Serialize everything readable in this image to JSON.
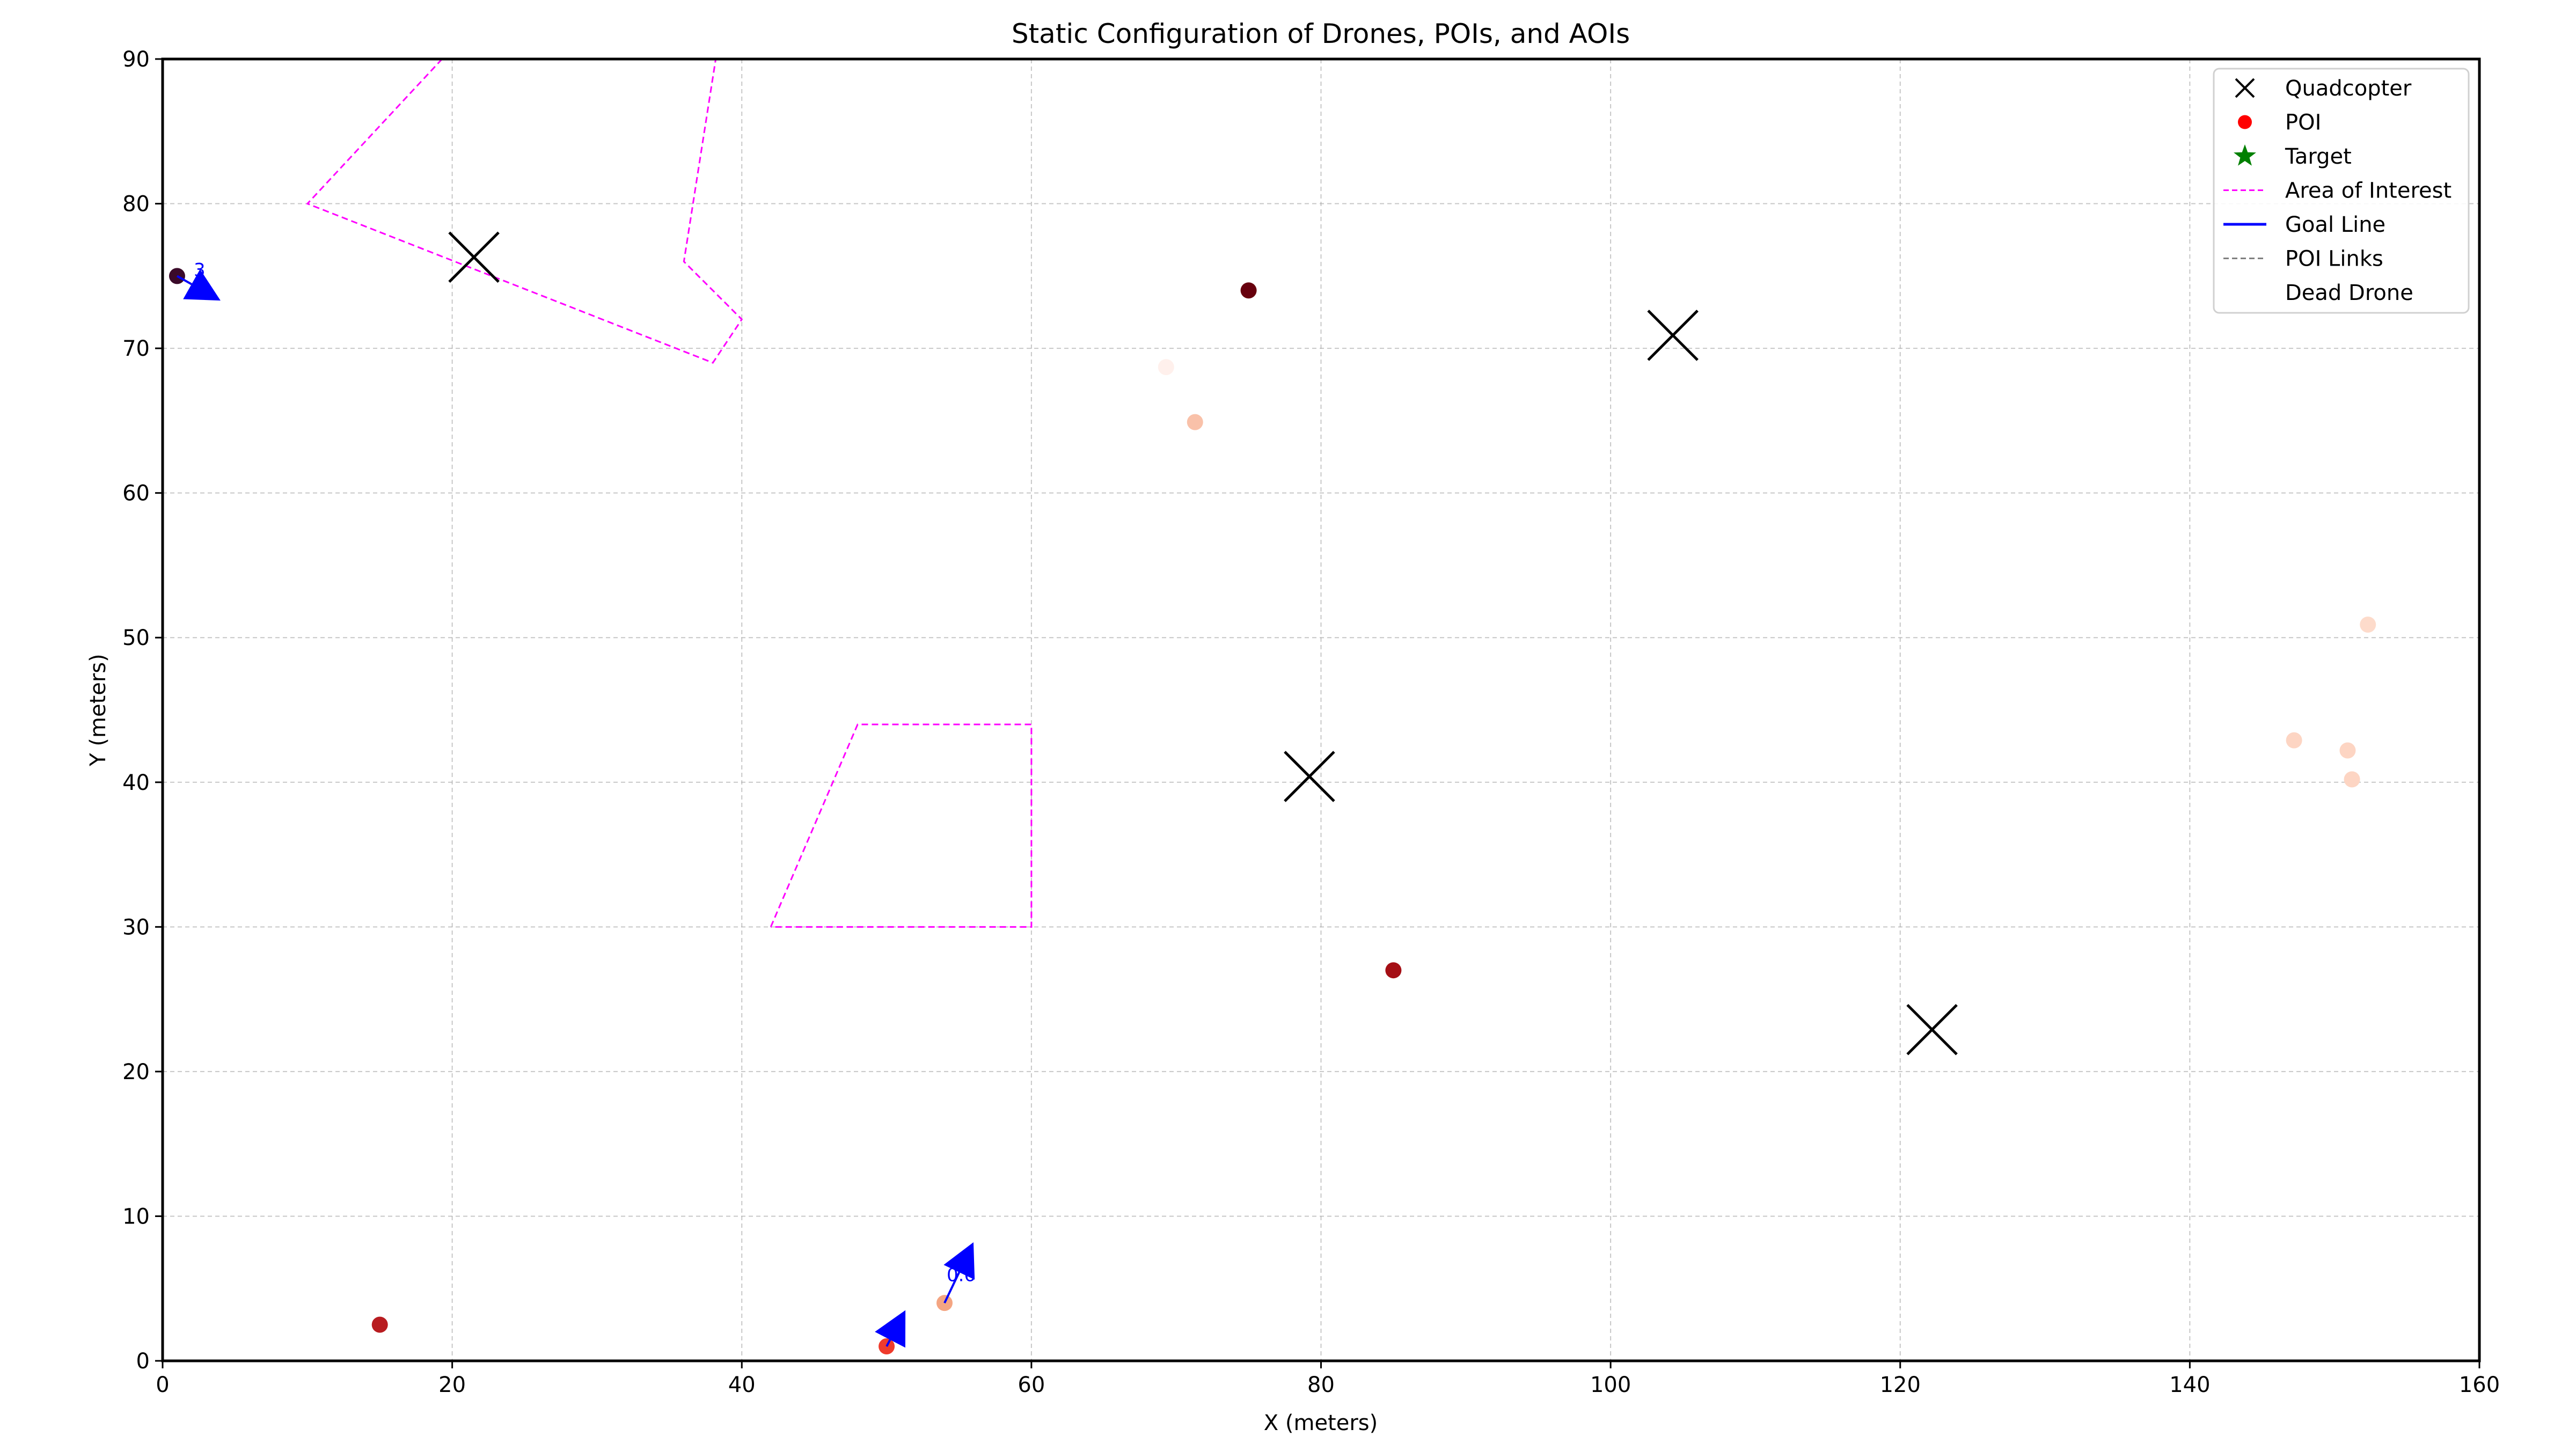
{
  "chart_data": {
    "type": "scatter",
    "title": "Static Configuration of Drones, POIs, and AOIs",
    "xlabel": "X (meters)",
    "ylabel": "Y (meters)",
    "xlim": [
      0,
      160
    ],
    "ylim": [
      0,
      90
    ],
    "x_ticks": [
      0,
      20,
      40,
      60,
      80,
      100,
      120,
      140,
      160
    ],
    "y_ticks": [
      0,
      10,
      20,
      30,
      40,
      50,
      60,
      70,
      80,
      90
    ],
    "x_tick_labels": [
      "0",
      "20",
      "40",
      "60",
      "80",
      "100",
      "120",
      "140",
      "160"
    ],
    "y_tick_labels": [
      "0",
      "10",
      "20",
      "30",
      "40",
      "50",
      "60",
      "70",
      "80",
      "90"
    ],
    "grid": true,
    "legend_position": "top-right",
    "legend": [
      {
        "label": "Quadcopter",
        "marker": "x",
        "color": "#000000"
      },
      {
        "label": "POI",
        "marker": "circle",
        "color": "#ff0000"
      },
      {
        "label": "Target",
        "marker": "star",
        "color": "#008000"
      },
      {
        "label": "Area of Interest",
        "marker": "dashed-line",
        "color": "#ff00ff"
      },
      {
        "label": "Goal Line",
        "marker": "line",
        "color": "#0000ff"
      },
      {
        "label": "POI Links",
        "marker": "dashed-line",
        "color": "#808080"
      },
      {
        "label": "Dead Drone",
        "marker": "none",
        "color": "#ffffff"
      }
    ],
    "series": [
      {
        "name": "Quadcopter",
        "points": [
          {
            "x": 21.5,
            "y": 76.3
          },
          {
            "x": 104.3,
            "y": 70.9
          },
          {
            "x": 79.2,
            "y": 40.4
          },
          {
            "x": 122.2,
            "y": 22.9
          }
        ]
      },
      {
        "name": "POI",
        "points": [
          {
            "x": 1.0,
            "y": 75.0,
            "color": "#3b0a2a"
          },
          {
            "x": 75.0,
            "y": 74.0,
            "color": "#67000d"
          },
          {
            "x": 69.3,
            "y": 68.7,
            "color": "#fff0ec"
          },
          {
            "x": 71.3,
            "y": 64.9,
            "color": "#f9c1a9"
          },
          {
            "x": 152.3,
            "y": 50.9,
            "color": "#fddbcb"
          },
          {
            "x": 147.2,
            "y": 42.9,
            "color": "#fdd5c3"
          },
          {
            "x": 150.9,
            "y": 42.2,
            "color": "#fdd5c3"
          },
          {
            "x": 151.2,
            "y": 40.2,
            "color": "#fdd5c3"
          },
          {
            "x": 85.0,
            "y": 27.0,
            "color": "#a50f15"
          },
          {
            "x": 15.0,
            "y": 2.5,
            "color": "#b81c20"
          },
          {
            "x": 54.0,
            "y": 4.0,
            "color": "#f4a582"
          },
          {
            "x": 50.0,
            "y": 1.0,
            "color": "#ef3b2c"
          }
        ]
      }
    ],
    "areas_of_interest": [
      {
        "points": [
          [
            19.3,
            90
          ],
          [
            10,
            80
          ],
          [
            38,
            69
          ],
          [
            40,
            72
          ],
          [
            36,
            76
          ],
          [
            38.2,
            90
          ]
        ]
      },
      {
        "points": [
          [
            42,
            30
          ],
          [
            48,
            44
          ],
          [
            60,
            44
          ],
          [
            60,
            30
          ],
          [
            42,
            30
          ]
        ]
      }
    ],
    "goal_arrows": [
      {
        "x1": 1.0,
        "y1": 75.0,
        "x2": 4.0,
        "y2": 73.3
      },
      {
        "x1": 54.0,
        "y1": 4.0,
        "x2": 56.0,
        "y2": 8.2
      },
      {
        "x1": 50.0,
        "y1": 1.0,
        "x2": 51.3,
        "y2": 3.5
      }
    ],
    "annotations": [
      {
        "text": "3",
        "x": 2.0,
        "y": 75.0
      },
      {
        "text": "0.6",
        "x": 54.0,
        "y": 5.5
      },
      {
        "text": "0.",
        "x": 50.0,
        "y": 1.7
      }
    ]
  }
}
